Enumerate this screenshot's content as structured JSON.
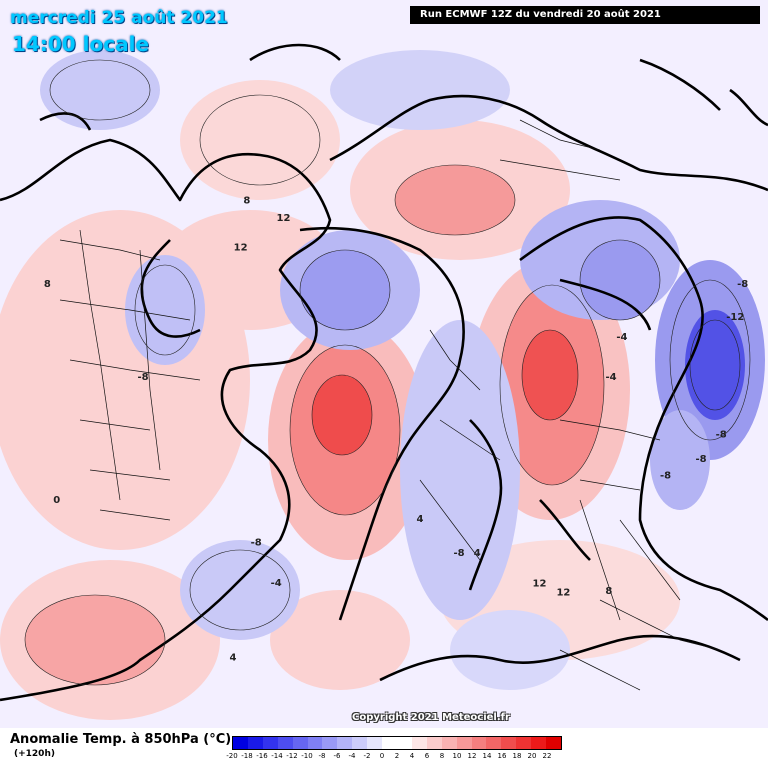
{
  "header": {
    "date": "mercredi 25 août 2021",
    "time": "14:00 locale",
    "run": "Run ECMWF 12Z du vendredi 20 août 2021"
  },
  "copyright": "Copyright 2021 Meteociel.fr",
  "legend": {
    "title": "Anomalie Temp. à 850hPa (°C)",
    "subtitle": "(+120h)",
    "ticks": [
      "-20",
      "-18",
      "-16",
      "-14",
      "-12",
      "-10",
      "-8",
      "-6",
      "-4",
      "-2",
      "0",
      "2",
      "4",
      "6",
      "8",
      "10",
      "12",
      "14",
      "16",
      "18",
      "20",
      "22"
    ],
    "colors": [
      "#0000e0",
      "#1a1ae8",
      "#3333ee",
      "#4d4df0",
      "#6666f2",
      "#7f7ff4",
      "#9999f6",
      "#b3b3f8",
      "#ccccfa",
      "#e6e6fc",
      "#ffffff",
      "#ffffff",
      "#fde6e6",
      "#fbcccc",
      "#f9b3b3",
      "#f79999",
      "#f57f7f",
      "#f36666",
      "#f14d4d",
      "#ef3333",
      "#ed1a1a",
      "#e00000"
    ]
  },
  "map": {
    "labels": [
      {
        "text": "0",
        "lon": -60,
        "lat": 40
      },
      {
        "text": "-4",
        "lon": 100,
        "lat": 60
      },
      {
        "text": "-4",
        "lon": 110,
        "lat": 58
      },
      {
        "text": "4",
        "lon": 20,
        "lat": 70
      },
      {
        "text": "-8",
        "lon": 30,
        "lat": 64
      },
      {
        "text": "4",
        "lon": 35,
        "lat": 63
      },
      {
        "text": "-8",
        "lon": -30,
        "lat": 60
      },
      {
        "text": "-4",
        "lon": -20,
        "lat": 57
      },
      {
        "text": "-8",
        "lon": 80,
        "lat": 50
      },
      {
        "text": "-8",
        "lon": 85,
        "lat": 46
      },
      {
        "text": "-8",
        "lon": 90,
        "lat": 44
      },
      {
        "text": "-12",
        "lon": 110,
        "lat": 42
      },
      {
        "text": "-8",
        "lon": 115,
        "lat": 40
      },
      {
        "text": "12",
        "lon": 45,
        "lat": 55
      },
      {
        "text": "12",
        "lon": 48,
        "lat": 52
      },
      {
        "text": "8",
        "lon": 55,
        "lat": 48
      },
      {
        "text": "12",
        "lon": -135,
        "lat": 63
      },
      {
        "text": "12",
        "lon": -120,
        "lat": 62
      },
      {
        "text": "8",
        "lon": -130,
        "lat": 58
      },
      {
        "text": "-8",
        "lon": -80,
        "lat": 55
      },
      {
        "text": "8",
        "lon": -95,
        "lat": 40
      },
      {
        "text": "-4",
        "lon": -165,
        "lat": 40
      },
      {
        "text": "4",
        "lon": 160,
        "lat": 30
      },
      {
        "text": "0",
        "lon": 175,
        "lat": 35
      },
      {
        "text": "4",
        "lon": -20,
        "lat": 45
      }
    ]
  }
}
